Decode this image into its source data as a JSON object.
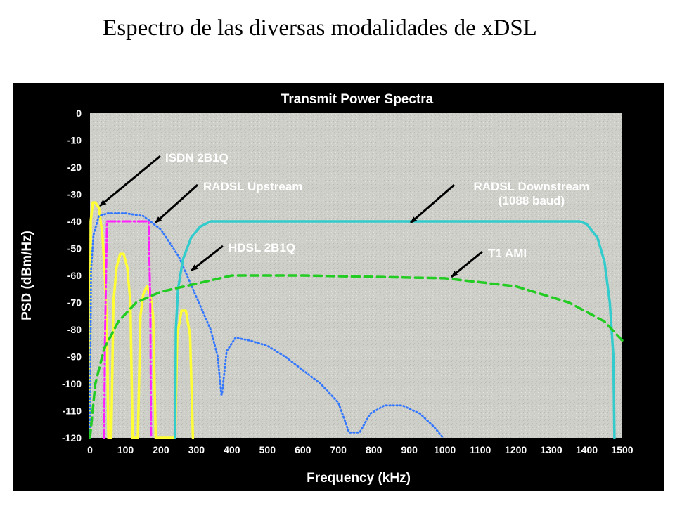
{
  "slide": {
    "title": "Espectro de las diversas modalidades de xDSL"
  },
  "chart_data": {
    "type": "line",
    "title": "Transmit Power Spectra",
    "xlabel": "Frequency (kHz)",
    "ylabel": "PSD (dBm/Hz)",
    "xlim": [
      0,
      1500
    ],
    "ylim": [
      -120,
      0
    ],
    "xticks": [
      "0",
      "100",
      "200",
      "300",
      "400",
      "500",
      "600",
      "700",
      "800",
      "900",
      "1000",
      "1100",
      "1200",
      "1300",
      "1400",
      "1500"
    ],
    "yticks": [
      "0",
      "-10",
      "-20",
      "-30",
      "-40",
      "-50",
      "-60",
      "-70",
      "-80",
      "-90",
      "-100",
      "-110",
      "-120"
    ],
    "grid": false,
    "legend": "none",
    "series": [
      {
        "name": "ISDN 2B1Q",
        "color": "#ffff33",
        "style": "solid",
        "points": [
          [
            0,
            -120
          ],
          [
            2,
            -40
          ],
          [
            8,
            -33
          ],
          [
            15,
            -33
          ],
          [
            25,
            -35
          ],
          [
            35,
            -45
          ],
          [
            42,
            -60
          ],
          [
            48,
            -80
          ],
          [
            52,
            -120
          ],
          [
            60,
            -120
          ],
          [
            66,
            -70
          ],
          [
            75,
            -57
          ],
          [
            85,
            -52
          ],
          [
            95,
            -52
          ],
          [
            105,
            -57
          ],
          [
            114,
            -70
          ],
          [
            120,
            -120
          ],
          [
            135,
            -120
          ],
          [
            142,
            -75
          ],
          [
            150,
            -67
          ],
          [
            160,
            -64
          ],
          [
            170,
            -67
          ],
          [
            178,
            -75
          ],
          [
            185,
            -120
          ],
          [
            240,
            -120
          ],
          [
            246,
            -82
          ],
          [
            258,
            -73
          ],
          [
            270,
            -73
          ],
          [
            282,
            -82
          ],
          [
            290,
            -120
          ]
        ]
      },
      {
        "name": "RADSL Upstream",
        "color": "#ff22ff",
        "style": "dashdot",
        "points": [
          [
            40,
            -120
          ],
          [
            42,
            -85
          ],
          [
            48,
            -40
          ],
          [
            55,
            -40
          ],
          [
            80,
            -40
          ],
          [
            150,
            -40
          ],
          [
            165,
            -40
          ],
          [
            170,
            -70
          ],
          [
            172,
            -120
          ]
        ]
      },
      {
        "name": "HDSL 2B1Q",
        "color": "#3377ff",
        "style": "dotted",
        "points": [
          [
            0,
            -120
          ],
          [
            3,
            -58
          ],
          [
            10,
            -45
          ],
          [
            25,
            -38
          ],
          [
            50,
            -37
          ],
          [
            100,
            -37
          ],
          [
            150,
            -38
          ],
          [
            200,
            -43
          ],
          [
            250,
            -53
          ],
          [
            300,
            -68
          ],
          [
            340,
            -80
          ],
          [
            360,
            -90
          ],
          [
            370,
            -104
          ],
          [
            372,
            -104
          ],
          [
            385,
            -88
          ],
          [
            410,
            -83
          ],
          [
            450,
            -84
          ],
          [
            500,
            -86
          ],
          [
            550,
            -90
          ],
          [
            600,
            -95
          ],
          [
            650,
            -100
          ],
          [
            700,
            -107
          ],
          [
            730,
            -118
          ],
          [
            760,
            -118
          ],
          [
            790,
            -111
          ],
          [
            830,
            -108
          ],
          [
            880,
            -108
          ],
          [
            930,
            -111
          ],
          [
            970,
            -116
          ],
          [
            995,
            -120
          ]
        ]
      },
      {
        "name": "RADSL Downstream (1088 baud)",
        "color": "#33cccc",
        "style": "solid",
        "points": [
          [
            240,
            -120
          ],
          [
            242,
            -80
          ],
          [
            248,
            -65
          ],
          [
            262,
            -54
          ],
          [
            285,
            -46
          ],
          [
            310,
            -42
          ],
          [
            340,
            -40
          ],
          [
            500,
            -40
          ],
          [
            900,
            -40
          ],
          [
            1380,
            -40
          ],
          [
            1400,
            -41
          ],
          [
            1430,
            -46
          ],
          [
            1450,
            -55
          ],
          [
            1465,
            -70
          ],
          [
            1475,
            -90
          ],
          [
            1478,
            -120
          ]
        ]
      },
      {
        "name": "T1 AMI",
        "color": "#22cc22",
        "style": "dashed",
        "points": [
          [
            0,
            -120
          ],
          [
            15,
            -100
          ],
          [
            40,
            -87
          ],
          [
            80,
            -77
          ],
          [
            130,
            -70
          ],
          [
            200,
            -66
          ],
          [
            300,
            -63
          ],
          [
            400,
            -60
          ],
          [
            600,
            -60
          ],
          [
            1000,
            -61
          ],
          [
            1200,
            -64
          ],
          [
            1350,
            -70
          ],
          [
            1450,
            -77
          ],
          [
            1500,
            -84
          ]
        ]
      }
    ],
    "annotations": [
      {
        "lines": [
          "ISDN 2B1Q"
        ]
      },
      {
        "lines": [
          "RADSL Upstream"
        ]
      },
      {
        "lines": [
          "RADSL Downstream",
          "(1088 baud)"
        ]
      },
      {
        "lines": [
          "HDSL 2B1Q"
        ]
      },
      {
        "lines": [
          "T1 AMI"
        ]
      }
    ]
  }
}
